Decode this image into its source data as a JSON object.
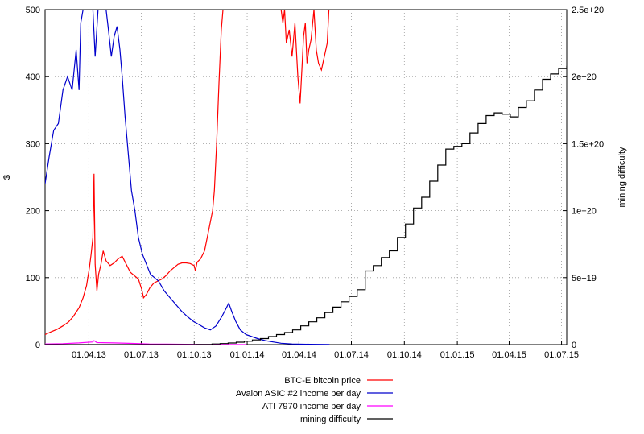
{
  "chart_data": {
    "type": "line",
    "title": "",
    "xlabel": "",
    "ylabel": "$",
    "y2label": "mining difficulty",
    "x_ticks": [
      "01.04.13",
      "01.07.13",
      "01.10.13",
      "01.01.14",
      "01.04.14",
      "01.07.14",
      "01.10.14",
      "01.01.15",
      "01.04.15",
      "01.07.15"
    ],
    "x_tick_dates": [
      "2013-04-01",
      "2013-07-01",
      "2013-10-01",
      "2014-01-01",
      "2014-04-01",
      "2014-07-01",
      "2014-10-01",
      "2015-01-01",
      "2015-04-01",
      "2015-07-01"
    ],
    "xlim": [
      "2013-01-15",
      "2015-07-10"
    ],
    "ylim": [
      0,
      500
    ],
    "y_ticks": [
      "0",
      "100",
      "200",
      "300",
      "400",
      "500"
    ],
    "y2lim": [
      0,
      2.5e+20
    ],
    "y2_ticks": [
      "0",
      "5e+19",
      "1e+20",
      "1.5e+20",
      "2e+20",
      "2.5e+20"
    ],
    "grid": true,
    "legend_position": "bottom-right",
    "series": [
      {
        "name": "BTC-E bitcoin price",
        "axis": "y1",
        "color": "#ff0000",
        "points": [
          [
            "2013-01-15",
            15
          ],
          [
            "2013-01-25",
            19
          ],
          [
            "2013-02-05",
            23
          ],
          [
            "2013-02-15",
            28
          ],
          [
            "2013-02-25",
            34
          ],
          [
            "2013-03-05",
            42
          ],
          [
            "2013-03-15",
            55
          ],
          [
            "2013-03-22",
            70
          ],
          [
            "2013-03-28",
            88
          ],
          [
            "2013-04-02",
            115
          ],
          [
            "2013-04-05",
            135
          ],
          [
            "2013-04-08",
            160
          ],
          [
            "2013-04-10",
            255
          ],
          [
            "2013-04-12",
            120
          ],
          [
            "2013-04-15",
            80
          ],
          [
            "2013-04-18",
            105
          ],
          [
            "2013-04-22",
            120
          ],
          [
            "2013-04-26",
            140
          ],
          [
            "2013-05-01",
            125
          ],
          [
            "2013-05-08",
            118
          ],
          [
            "2013-05-15",
            122
          ],
          [
            "2013-05-22",
            128
          ],
          [
            "2013-05-29",
            132
          ],
          [
            "2013-06-05",
            120
          ],
          [
            "2013-06-12",
            108
          ],
          [
            "2013-06-19",
            103
          ],
          [
            "2013-06-26",
            98
          ],
          [
            "2013-07-02",
            82
          ],
          [
            "2013-07-05",
            70
          ],
          [
            "2013-07-10",
            75
          ],
          [
            "2013-07-16",
            85
          ],
          [
            "2013-07-23",
            92
          ],
          [
            "2013-07-30",
            95
          ],
          [
            "2013-08-06",
            98
          ],
          [
            "2013-08-13",
            103
          ],
          [
            "2013-08-20",
            110
          ],
          [
            "2013-08-27",
            115
          ],
          [
            "2013-09-03",
            120
          ],
          [
            "2013-09-10",
            122
          ],
          [
            "2013-09-17",
            122
          ],
          [
            "2013-09-24",
            121
          ],
          [
            "2013-10-01",
            118
          ],
          [
            "2013-10-03",
            110
          ],
          [
            "2013-10-06",
            123
          ],
          [
            "2013-10-12",
            128
          ],
          [
            "2013-10-19",
            140
          ],
          [
            "2013-10-26",
            170
          ],
          [
            "2013-11-02",
            200
          ],
          [
            "2013-11-05",
            230
          ],
          [
            "2013-11-09",
            300
          ],
          [
            "2013-11-13",
            390
          ],
          [
            "2013-11-17",
            470
          ],
          [
            "2013-11-20",
            500
          ]
        ]
      },
      {
        "name": "BTC-E bitcoin price",
        "axis": "y1",
        "color": "#ff0000",
        "points": [
          [
            "2014-03-01",
            500
          ],
          [
            "2014-03-04",
            480
          ],
          [
            "2014-03-07",
            500
          ],
          [
            "2014-03-10",
            450
          ],
          [
            "2014-03-15",
            470
          ],
          [
            "2014-03-20",
            430
          ],
          [
            "2014-03-25",
            480
          ],
          [
            "2014-03-30",
            400
          ],
          [
            "2014-04-03",
            360
          ],
          [
            "2014-04-06",
            410
          ],
          [
            "2014-04-09",
            460
          ],
          [
            "2014-04-12",
            480
          ],
          [
            "2014-04-15",
            420
          ],
          [
            "2014-04-18",
            440
          ],
          [
            "2014-04-22",
            455
          ],
          [
            "2014-04-27",
            500
          ],
          [
            "2014-05-01",
            440
          ],
          [
            "2014-05-05",
            420
          ],
          [
            "2014-05-10",
            410
          ],
          [
            "2014-05-15",
            430
          ],
          [
            "2014-05-20",
            450
          ],
          [
            "2014-05-23",
            500
          ]
        ]
      },
      {
        "name": "Avalon ASIC #2 income per day",
        "axis": "y1",
        "color": "#0000cc",
        "points": [
          [
            "2013-01-15",
            240
          ],
          [
            "2013-01-22",
            280
          ],
          [
            "2013-01-30",
            320
          ],
          [
            "2013-02-07",
            330
          ],
          [
            "2013-02-15",
            380
          ],
          [
            "2013-02-23",
            400
          ],
          [
            "2013-03-03",
            380
          ],
          [
            "2013-03-10",
            440
          ],
          [
            "2013-03-15",
            380
          ],
          [
            "2013-03-18",
            480
          ],
          [
            "2013-03-22",
            500
          ],
          [
            "2013-04-08",
            500
          ],
          [
            "2013-04-12",
            430
          ],
          [
            "2013-04-17",
            500
          ],
          [
            "2013-05-01",
            500
          ],
          [
            "2013-05-05",
            470
          ],
          [
            "2013-05-10",
            430
          ],
          [
            "2013-05-15",
            460
          ],
          [
            "2013-05-20",
            475
          ],
          [
            "2013-05-25",
            440
          ],
          [
            "2013-05-29",
            400
          ],
          [
            "2013-06-03",
            340
          ],
          [
            "2013-06-08",
            290
          ],
          [
            "2013-06-14",
            230
          ],
          [
            "2013-06-20",
            200
          ],
          [
            "2013-06-26",
            160
          ],
          [
            "2013-07-03",
            135
          ],
          [
            "2013-07-10",
            120
          ],
          [
            "2013-07-17",
            105
          ],
          [
            "2013-07-24",
            100
          ],
          [
            "2013-07-31",
            95
          ],
          [
            "2013-08-10",
            80
          ],
          [
            "2013-08-20",
            70
          ],
          [
            "2013-08-30",
            60
          ],
          [
            "2013-09-09",
            50
          ],
          [
            "2013-09-19",
            42
          ],
          [
            "2013-09-29",
            35
          ],
          [
            "2013-10-09",
            30
          ],
          [
            "2013-10-19",
            25
          ],
          [
            "2013-10-29",
            22
          ],
          [
            "2013-11-08",
            28
          ],
          [
            "2013-11-18",
            42
          ],
          [
            "2013-11-26",
            55
          ],
          [
            "2013-11-30",
            62
          ],
          [
            "2013-12-05",
            50
          ],
          [
            "2013-12-12",
            35
          ],
          [
            "2013-12-20",
            22
          ],
          [
            "2013-12-30",
            15
          ],
          [
            "2014-01-09",
            12
          ],
          [
            "2014-01-19",
            9
          ],
          [
            "2014-02-01",
            6
          ],
          [
            "2014-02-15",
            4
          ],
          [
            "2014-03-01",
            2
          ],
          [
            "2014-03-20",
            1
          ],
          [
            "2014-04-20",
            0.5
          ],
          [
            "2014-05-24",
            0.3
          ]
        ]
      },
      {
        "name": "ATI 7970 income per day",
        "axis": "y1",
        "color": "#ff00ff",
        "points": [
          [
            "2013-01-15",
            1
          ],
          [
            "2013-02-15",
            1.5
          ],
          [
            "2013-03-15",
            2.5
          ],
          [
            "2013-04-08",
            4
          ],
          [
            "2013-04-10",
            6
          ],
          [
            "2013-04-15",
            3
          ],
          [
            "2013-05-15",
            2.5
          ],
          [
            "2013-06-15",
            1.8
          ],
          [
            "2013-07-15",
            1
          ],
          [
            "2013-08-15",
            0.8
          ],
          [
            "2013-09-15",
            0.5
          ],
          [
            "2013-10-15",
            0.3
          ],
          [
            "2013-11-15",
            0.2
          ],
          [
            "2013-12-31",
            0
          ]
        ]
      },
      {
        "name": "mining difficulty",
        "axis": "y2",
        "color": "#000000",
        "step": true,
        "points": [
          [
            "2013-01-15",
            0
          ],
          [
            "2013-06-01",
            1000000000000000.0
          ],
          [
            "2013-09-01",
            2e+16
          ],
          [
            "2013-10-05",
            5e+16
          ],
          [
            "2013-10-20",
            1.5e+17
          ],
          [
            "2013-11-01",
            5e+17
          ],
          [
            "2013-11-15",
            8e+17
          ],
          [
            "2013-11-29",
            1.2e+18
          ],
          [
            "2013-12-13",
            1.8e+18
          ],
          [
            "2013-12-27",
            2.5e+18
          ],
          [
            "2014-01-10",
            3.5e+18
          ],
          [
            "2014-01-24",
            4.5e+18
          ],
          [
            "2014-02-07",
            6e+18
          ],
          [
            "2014-02-21",
            7.5e+18
          ],
          [
            "2014-03-07",
            9e+18
          ],
          [
            "2014-03-21",
            1.1e+19
          ],
          [
            "2014-04-04",
            1.4e+19
          ],
          [
            "2014-04-18",
            1.7e+19
          ],
          [
            "2014-05-02",
            2e+19
          ],
          [
            "2014-05-16",
            2.4e+19
          ],
          [
            "2014-05-30",
            2.8e+19
          ],
          [
            "2014-06-13",
            3.2e+19
          ],
          [
            "2014-06-27",
            3.6e+19
          ],
          [
            "2014-07-11",
            4.1e+19
          ],
          [
            "2014-07-25",
            5.5e+19
          ],
          [
            "2014-08-08",
            5.9e+19
          ],
          [
            "2014-08-22",
            6.5e+19
          ],
          [
            "2014-09-05",
            7e+19
          ],
          [
            "2014-09-19",
            8e+19
          ],
          [
            "2014-10-03",
            9e+19
          ],
          [
            "2014-10-17",
            1.02e+20
          ],
          [
            "2014-10-31",
            1.1e+20
          ],
          [
            "2014-11-14",
            1.22e+20
          ],
          [
            "2014-11-28",
            1.34e+20
          ],
          [
            "2014-12-12",
            1.46e+20
          ],
          [
            "2014-12-26",
            1.48e+20
          ],
          [
            "2015-01-09",
            1.5e+20
          ],
          [
            "2015-01-23",
            1.58e+20
          ],
          [
            "2015-02-06",
            1.65e+20
          ],
          [
            "2015-02-20",
            1.71e+20
          ],
          [
            "2015-03-06",
            1.73e+20
          ],
          [
            "2015-03-20",
            1.72e+20
          ],
          [
            "2015-04-03",
            1.7e+20
          ],
          [
            "2015-04-17",
            1.77e+20
          ],
          [
            "2015-05-01",
            1.82e+20
          ],
          [
            "2015-05-15",
            1.9e+20
          ],
          [
            "2015-05-29",
            1.98e+20
          ],
          [
            "2015-06-12",
            2.02e+20
          ],
          [
            "2015-06-26",
            2.06e+20
          ],
          [
            "2015-07-10",
            2.08e+20
          ]
        ]
      }
    ],
    "legend": [
      {
        "label": "BTC-E bitcoin price",
        "color": "#ff0000"
      },
      {
        "label": "Avalon ASIC #2 income per day",
        "color": "#0000cc"
      },
      {
        "label": "ATI 7970 income per day",
        "color": "#ff00ff"
      },
      {
        "label": "mining difficulty",
        "color": "#000000"
      }
    ]
  }
}
